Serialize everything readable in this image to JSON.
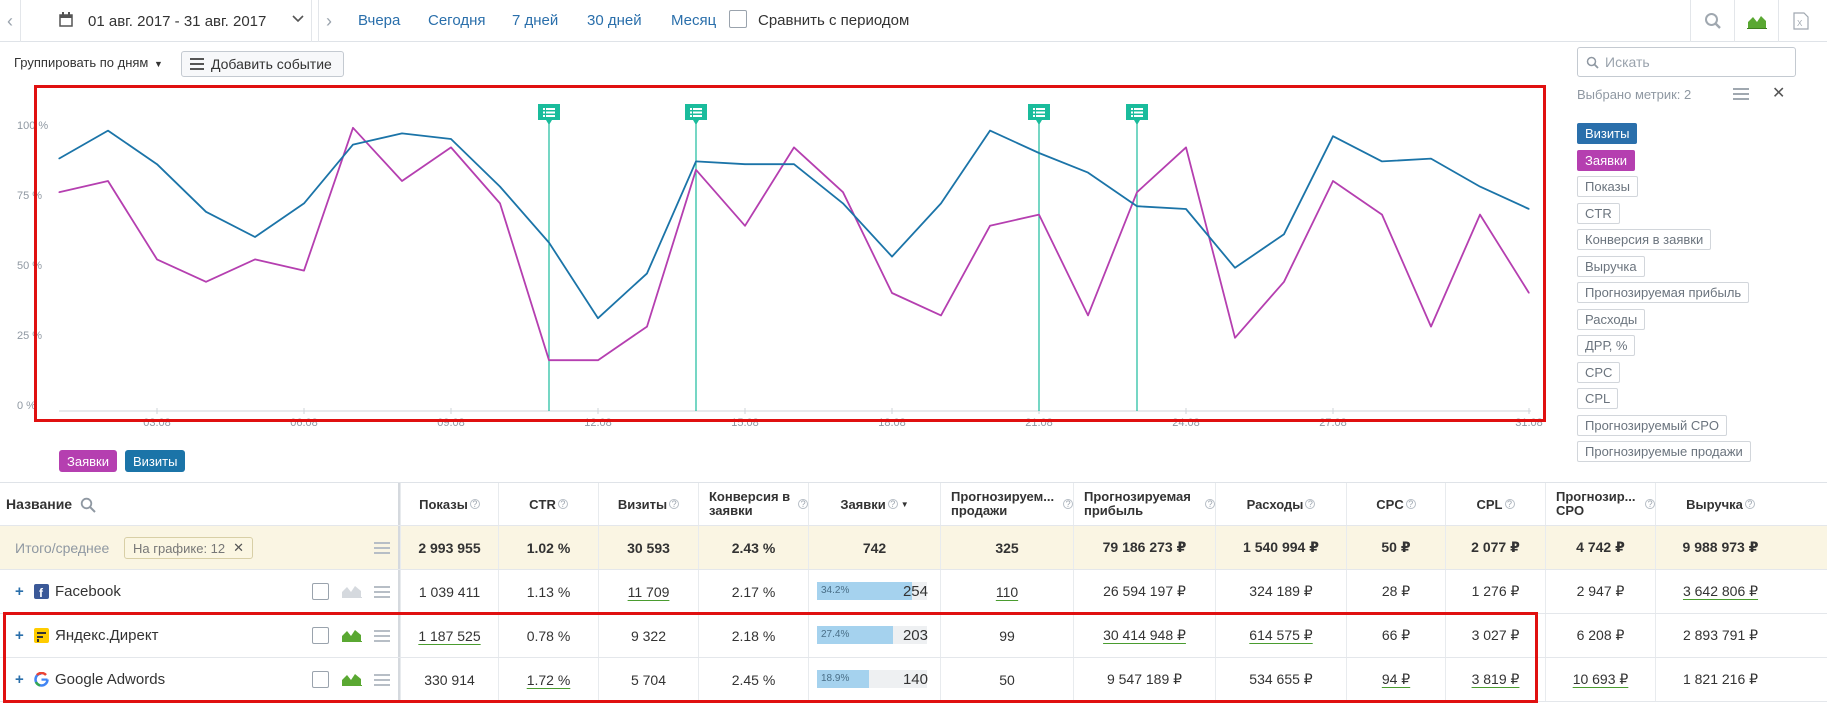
{
  "toolbar": {
    "date_range": "01 авг. 2017 - 31 авг. 2017",
    "quick_ranges": [
      "Вчера",
      "Сегодня",
      "7 дней",
      "30 дней",
      "Месяц"
    ],
    "compare_label": "Сравнить с периодом"
  },
  "controls": {
    "group_by": "Группировать по дням",
    "add_event": "Добавить событие"
  },
  "panel": {
    "search_placeholder": "Искать",
    "selected_info": "Выбрано метрик: 2",
    "metrics": [
      {
        "label": "Визиты",
        "active": true,
        "color": "#2a6fab"
      },
      {
        "label": "Заявки",
        "active": true,
        "color": "#b53fb0"
      },
      {
        "label": "Показы",
        "active": false
      },
      {
        "label": "CTR",
        "active": false
      },
      {
        "label": "Конверсия в заявки",
        "active": false
      },
      {
        "label": "Выручка",
        "active": false
      },
      {
        "label": "Прогнозируемая прибыль",
        "active": false
      },
      {
        "label": "Расходы",
        "active": false
      },
      {
        "label": "ДРР, %",
        "active": false
      },
      {
        "label": "CPC",
        "active": false
      },
      {
        "label": "CPL",
        "active": false
      },
      {
        "label": "Прогнозируемый CPO",
        "active": false
      },
      {
        "label": "Прогнозируемые продажи",
        "active": false
      }
    ]
  },
  "legend": [
    {
      "label": "Заявки",
      "color": "#b53fb0"
    },
    {
      "label": "Визиты",
      "color": "#1b74a8"
    }
  ],
  "chart_data": {
    "type": "line",
    "x": [
      "01.08",
      "02.08",
      "03.08",
      "04.08",
      "05.08",
      "06.08",
      "07.08",
      "08.08",
      "09.08",
      "10.08",
      "11.08",
      "12.08",
      "13.08",
      "14.08",
      "15.08",
      "16.08",
      "17.08",
      "18.08",
      "19.08",
      "20.08",
      "21.08",
      "22.08",
      "23.08",
      "24.08",
      "25.08",
      "26.08",
      "27.08",
      "28.08",
      "29.08",
      "30.08",
      "31.08"
    ],
    "x_tick_labels": [
      "03.08",
      "06.08",
      "09.08",
      "12.08",
      "15.08",
      "18.08",
      "21.08",
      "24.08",
      "27.08",
      "31.08"
    ],
    "y_tick_labels": [
      "0 %",
      "25 %",
      "50 %",
      "75 %",
      "100 %"
    ],
    "ylim": [
      0,
      100
    ],
    "series": [
      {
        "name": "Визиты",
        "color": "#1b74a8",
        "values": [
          88,
          98,
          86,
          69,
          60,
          72,
          93,
          97,
          95,
          78,
          58,
          31,
          47,
          87,
          86,
          86,
          72,
          53,
          72,
          98,
          90,
          83,
          71,
          70,
          49,
          61,
          96,
          87,
          88,
          78,
          70
        ]
      },
      {
        "name": "Заявки",
        "color": "#b53fb0",
        "values": [
          76,
          80,
          52,
          44,
          52,
          48,
          99,
          80,
          92,
          72,
          16,
          16,
          28,
          84,
          64,
          92,
          76,
          40,
          32,
          64,
          68,
          32,
          76,
          92,
          24,
          44,
          80,
          68,
          28,
          68,
          40
        ]
      }
    ],
    "events_at": [
      "11.08",
      "14.08",
      "21.08",
      "23.08"
    ],
    "event_color": "#1abc9c"
  },
  "table": {
    "name_header": "Название",
    "on_chart_pill": "На графике: 12",
    "columns": [
      "Показы",
      "CTR",
      "Визиты",
      "Конверсия в заявки",
      "Заявки",
      "Прогнозируем... продажи",
      "Прогнозируемая прибыль",
      "Расходы",
      "CPC",
      "CPL",
      "Прогнозир... CPO",
      "Выручка"
    ],
    "total": {
      "label": "Итого/среднее",
      "values": [
        "2 993 955",
        "1.02 %",
        "30 593",
        "2.43 %",
        "742",
        "325",
        "79 186 273 ₽",
        "1 540 994 ₽",
        "50 ₽",
        "2 077 ₽",
        "4 742 ₽",
        "9 988 973 ₽"
      ]
    },
    "rows": [
      {
        "name": "Facebook",
        "icon": "facebook-icon",
        "bar_pct": "34.2%",
        "bar_fraction": 0.342,
        "values": [
          "1 039 411",
          "1.13 %",
          "11 709",
          "2.17 %",
          "254",
          "110",
          "26 594 197 ₽",
          "324 189 ₽",
          "28 ₽",
          "1 276 ₽",
          "2 947 ₽",
          "3 642 806 ₽"
        ]
      },
      {
        "name": "Яндекс.Директ",
        "icon": "yandex-direct-icon",
        "bar_pct": "27.4%",
        "bar_fraction": 0.274,
        "values": [
          "1 187 525",
          "0.78 %",
          "9 322",
          "2.18 %",
          "203",
          "99",
          "30 414 948 ₽",
          "614 575 ₽",
          "66 ₽",
          "3 027 ₽",
          "6 208 ₽",
          "2 893 791 ₽"
        ]
      },
      {
        "name": "Google Adwords",
        "icon": "google-icon",
        "bar_pct": "18.9%",
        "bar_fraction": 0.189,
        "values": [
          "330 914",
          "1.72 %",
          "5 704",
          "2.45 %",
          "140",
          "50",
          "9 547 189 ₽",
          "534 655 ₽",
          "94 ₽",
          "3 819 ₽",
          "10 693 ₽",
          "1 821 216 ₽"
        ]
      }
    ]
  }
}
